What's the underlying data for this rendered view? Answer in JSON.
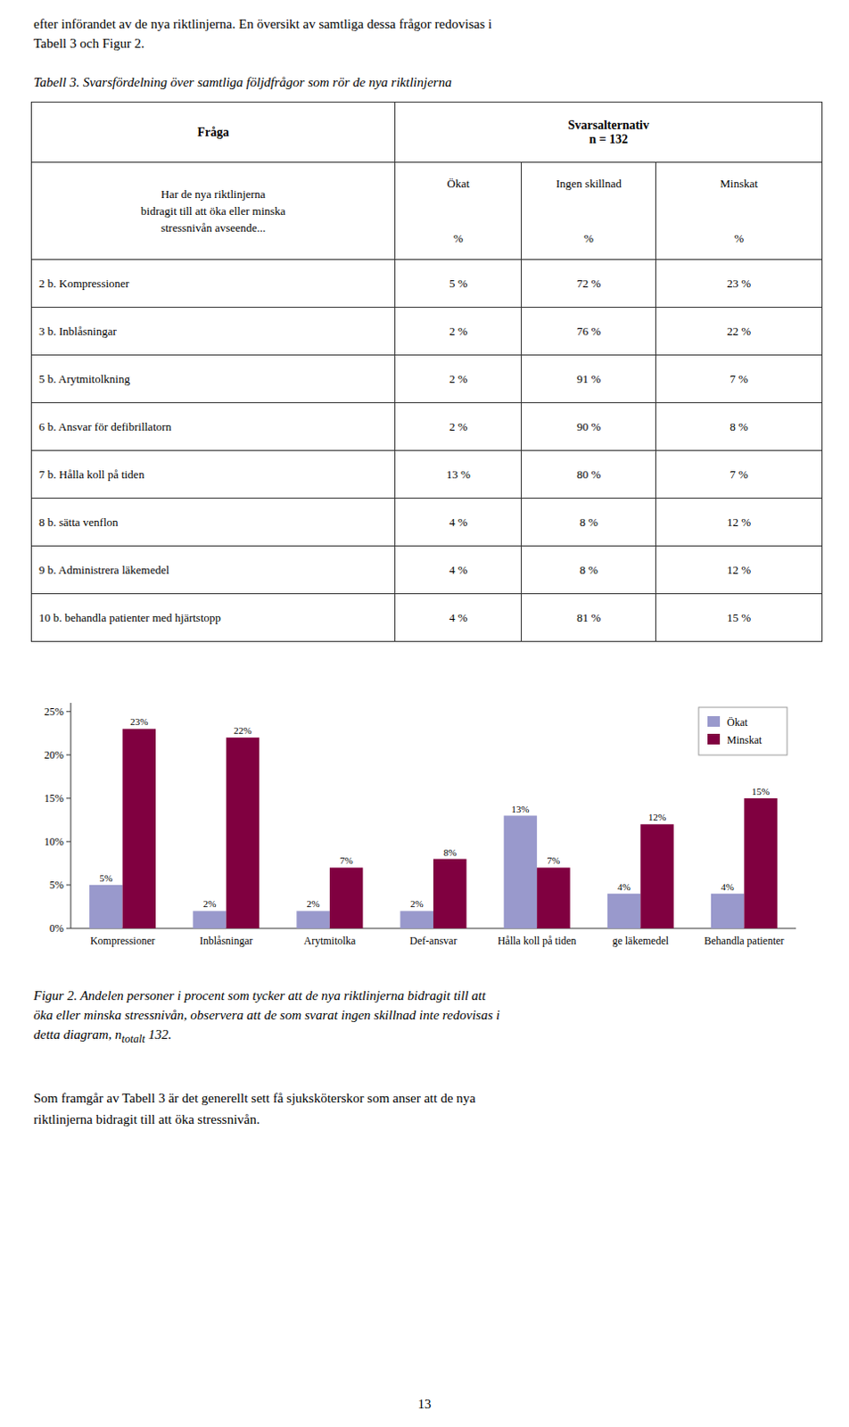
{
  "page_header_lines": [
    "efter införandet av de nya riktlinjerna. En översikt av samtliga dessa frågor redovisas i",
    "Tabell 3 och Figur 2."
  ],
  "table": {
    "title": "Tabell 3. Svarsfördelning över samtliga följdfrågor som rör de nya riktlinjerna",
    "header_question": "Fråga",
    "header_answers": [
      "Svarsalternativ",
      "n = 132"
    ],
    "subheader_question": "Har de nya riktlinjerna\nbidragit till att öka eller minska\nstressnivån avseende...",
    "answer_columns": [
      "Ökat",
      "Ingen skillnad",
      "Minskat"
    ],
    "unit_label": "%",
    "rows": [
      {
        "label": "2 b. Kompressioner",
        "okat": "5 %",
        "ingen": "72 %",
        "minskat": "23 %"
      },
      {
        "label": "3 b. Inblåsningar",
        "okat": "2 %",
        "ingen": "76 %",
        "minskat": "22 %"
      },
      {
        "label": "5 b. Arytmitolkning",
        "okat": "2 %",
        "ingen": "91 %",
        "minskat": "7 %"
      },
      {
        "label": "6 b. Ansvar för defibrillatorn",
        "okat": "2 %",
        "ingen": "90 %",
        "minskat": "8 %"
      },
      {
        "label": "7 b. Hålla koll på tiden",
        "okat": "13 %",
        "ingen": "80 %",
        "minskat": "7 %"
      },
      {
        "label": "8 b. sätta venflon",
        "okat": "4 %",
        "ingen": "8 %",
        "minskat": "12 %"
      },
      {
        "label": "9 b. Administrera läkemedel",
        "okat": "4 %",
        "ingen": "8 %",
        "minskat": "12 %"
      },
      {
        "label": "10 b. behandla patienter med hjärtstopp",
        "okat": "4 %",
        "ingen": "81 %",
        "minskat": "15 %"
      }
    ]
  },
  "chart_data": {
    "type": "bar",
    "categories": [
      "Kompressioner",
      "Inblåsningar",
      "Arytmitolka",
      "Def-ansvar",
      "Hålla koll på tiden",
      "ge läkemedel",
      "Behandla patienter"
    ],
    "series": [
      {
        "name": "Ökat",
        "color": "#9999cc",
        "values": [
          5,
          2,
          2,
          2,
          13,
          4,
          4
        ],
        "value_labels": [
          "5%",
          "2%",
          "2%",
          "2%",
          "13%",
          "4%",
          "4%"
        ]
      },
      {
        "name": "Minskat",
        "color": "#800040",
        "values": [
          23,
          22,
          7,
          8,
          7,
          12,
          15
        ],
        "value_labels": [
          "23%",
          "22%",
          "7%",
          "8%",
          "7%",
          "12%",
          "15%"
        ]
      }
    ],
    "ylim": [
      0,
      26
    ],
    "yticks": [
      {
        "value": 0,
        "label": "0%"
      },
      {
        "value": 5,
        "label": "5%"
      },
      {
        "value": 10,
        "label": "10%"
      },
      {
        "value": 15,
        "label": "15%"
      },
      {
        "value": 20,
        "label": "20%"
      },
      {
        "value": 25,
        "label": "25%"
      }
    ],
    "grid": false,
    "legend": "upper right",
    "data_labels": true
  },
  "figure_caption": {
    "lines": [
      "Figur 2. Andelen personer i procent som tycker att de nya riktlinjerna bidragit till att",
      "öka eller minska stressnivån, observera att de som svarat ingen skillnad inte redovisas i",
      "detta diagram, n"
    ],
    "subscript": "totalt",
    "end": " 132."
  },
  "footer_lines": [
    "Som framgår av Tabell 3 är det generellt sett få sjuksköterskor som anser att de nya",
    "riktlinjerna bidragit till att öka stressnivån."
  ],
  "page_number": "13"
}
